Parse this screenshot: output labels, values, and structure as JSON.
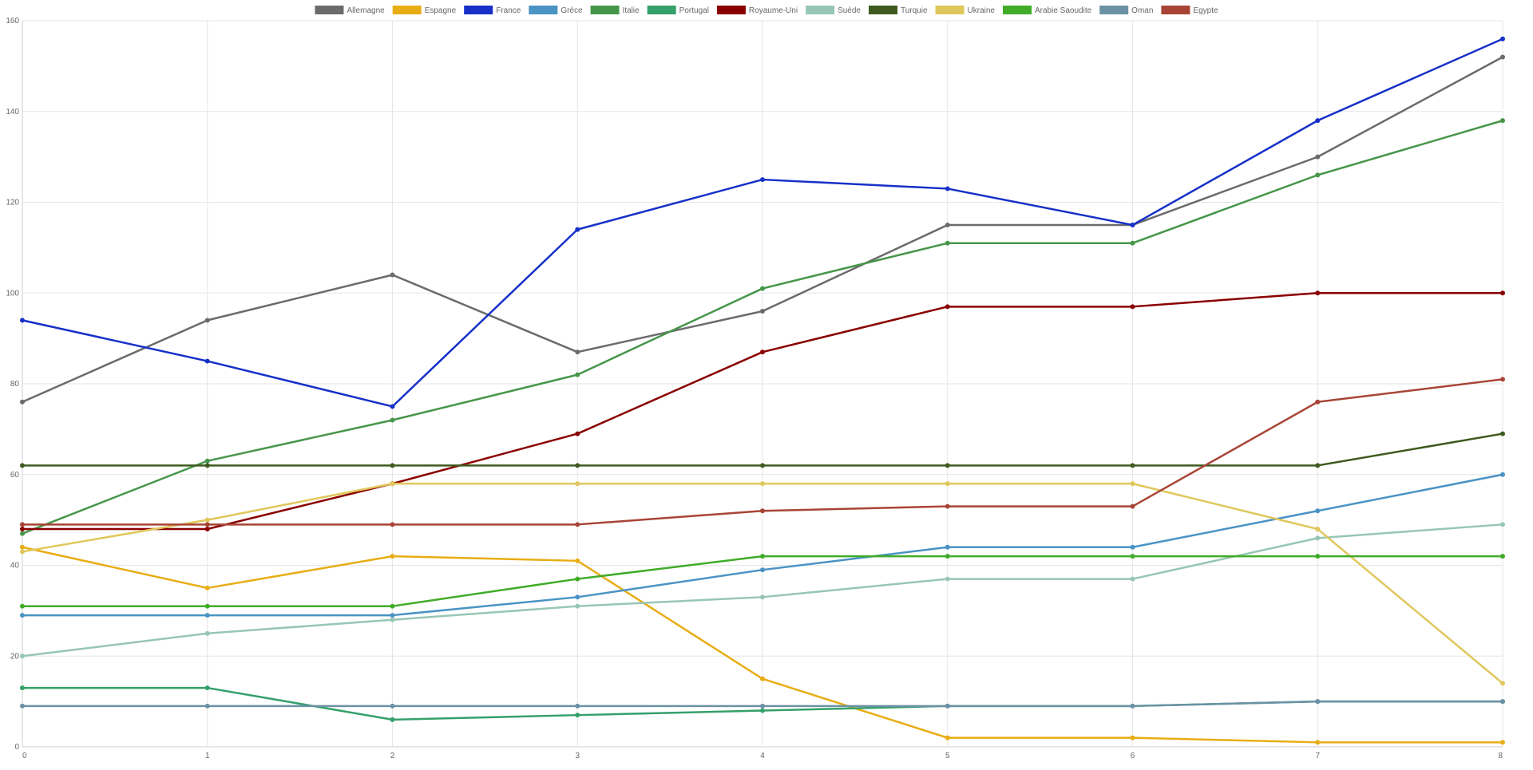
{
  "chart_data": {
    "type": "line",
    "title": "",
    "xlabel": "",
    "ylabel": "",
    "x": [
      0,
      1,
      2,
      3,
      4,
      5,
      6,
      7,
      8
    ],
    "xlim": [
      0,
      8
    ],
    "ylim": [
      0,
      160
    ],
    "y_ticks": [
      0,
      20,
      40,
      60,
      80,
      100,
      120,
      140,
      160
    ],
    "grid": true,
    "legend_position": "top-center",
    "series": [
      {
        "name": "Allemagne",
        "color": "#6b6b6b",
        "values": [
          76,
          94,
          104,
          87,
          96,
          115,
          115,
          130,
          152
        ]
      },
      {
        "name": "Espagne",
        "color": "#e8ad14",
        "values": [
          44,
          35,
          42,
          41,
          15,
          2,
          2,
          1,
          1
        ]
      },
      {
        "name": "France",
        "color": "#1630c8",
        "values": [
          94,
          85,
          75,
          114,
          125,
          123,
          115,
          138,
          156
        ]
      },
      {
        "name": "Grèce",
        "color": "#4a93c4",
        "values": [
          29,
          29,
          29,
          33,
          39,
          44,
          44,
          52,
          60
        ]
      },
      {
        "name": "Italie",
        "color": "#46964a",
        "values": [
          47,
          63,
          72,
          82,
          101,
          111,
          111,
          126,
          138
        ]
      },
      {
        "name": "Portugal",
        "color": "#34a06a",
        "values": [
          13,
          13,
          6,
          7,
          8,
          9,
          9,
          10,
          10
        ]
      },
      {
        "name": "Royaume-Uni",
        "color": "#8a0000",
        "values": [
          48,
          48,
          58,
          69,
          87,
          97,
          97,
          100,
          100
        ]
      },
      {
        "name": "Suède",
        "color": "#97c6b4",
        "values": [
          20,
          25,
          28,
          31,
          33,
          37,
          37,
          46,
          49
        ]
      },
      {
        "name": "Turquie",
        "color": "#3e5a1e",
        "values": [
          62,
          62,
          62,
          62,
          62,
          62,
          62,
          62,
          69
        ]
      },
      {
        "name": "Ukraine",
        "color": "#e0c75c",
        "values": [
          43,
          50,
          58,
          58,
          58,
          58,
          58,
          48,
          14
        ]
      },
      {
        "name": "Arabie Saoudite",
        "color": "#40ac28",
        "values": [
          31,
          31,
          31,
          37,
          42,
          42,
          42,
          42,
          42
        ]
      },
      {
        "name": "Oman",
        "color": "#6b91a5",
        "values": [
          9,
          9,
          9,
          9,
          9,
          9,
          9,
          10,
          10
        ]
      },
      {
        "name": "Egypte",
        "color": "#a84436",
        "values": [
          49,
          49,
          49,
          49,
          52,
          53,
          53,
          76,
          81
        ]
      }
    ]
  }
}
